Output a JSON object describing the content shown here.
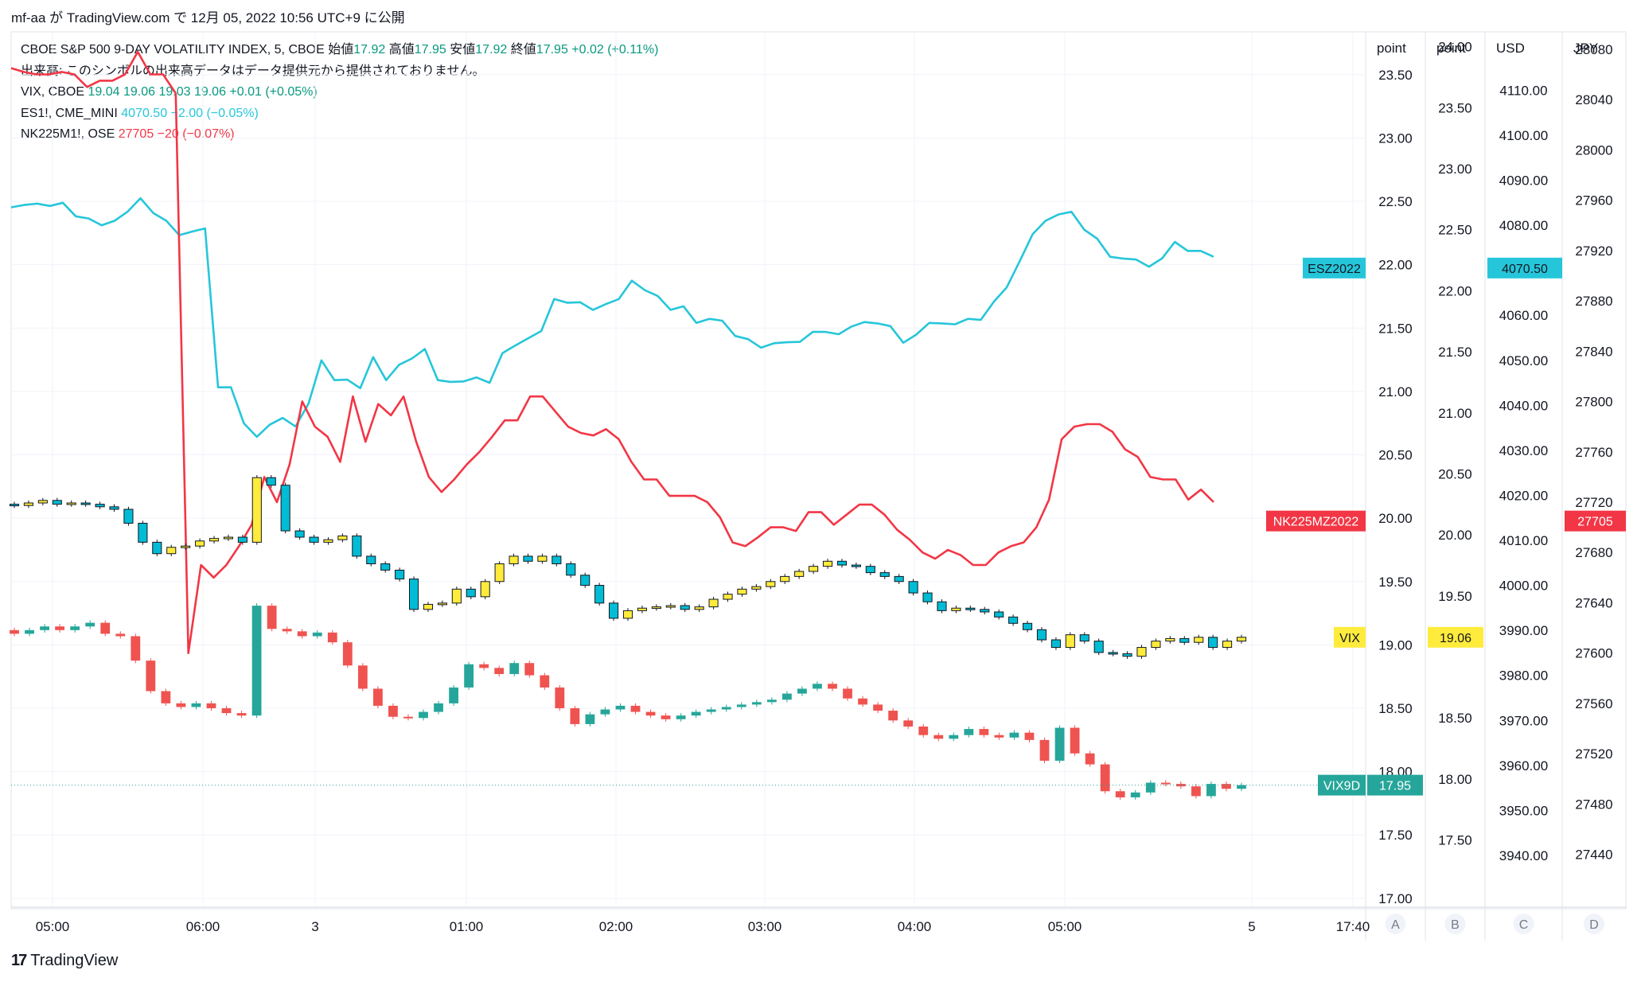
{
  "header": {
    "text": "mf-aa が TradingView.com で 12月 05, 2022 10:56 UTC+9 に公開"
  },
  "legend": {
    "main": {
      "name": "CBOE S&P 500 9-DAY VOLATILITY INDEX, 5, CBOE",
      "o_label": "始値",
      "o": "17.92",
      "h_label": "高値",
      "h": "17.95",
      "l_label": "安値",
      "l": "17.92",
      "c_label": "終値",
      "c": "17.95",
      "chg": "+0.02 (+0.11%)"
    },
    "volume_note": "出来高: このシンボルの出来高データはデータ提供元から提供されておりません。",
    "vix": {
      "name": "VIX, CBOE",
      "values": "19.04  19.06  19.03  19.06  +0.01 (+0.05%)"
    },
    "es": {
      "name": "ES1!, CME_MINI",
      "values": "4070.50  −2.00 (−0.05%)"
    },
    "nk": {
      "name": "NK225M1!, OSE",
      "values": "27705  −20 (−0.07%)"
    }
  },
  "axes": {
    "a_title": "point",
    "b_title": "point",
    "c_title": "USD",
    "d_title": "JPY",
    "a_ticks": [
      "23.50",
      "23.00",
      "22.50",
      "22.00",
      "21.50",
      "21.00",
      "20.50",
      "20.00",
      "19.50",
      "19.00",
      "18.50",
      "18.00",
      "17.50",
      "17.00"
    ],
    "b_ticks": [
      "24.00",
      "23.50",
      "23.00",
      "22.50",
      "22.00",
      "21.50",
      "21.00",
      "20.50",
      "20.00",
      "19.50",
      "18.50",
      "18.00",
      "17.50"
    ],
    "c_ticks": [
      "4110.00",
      "4100.00",
      "4090.00",
      "4080.00",
      "4060.00",
      "4050.00",
      "4040.00",
      "4030.00",
      "4020.00",
      "4010.00",
      "4000.00",
      "3990.00",
      "3980.00",
      "3970.00",
      "3960.00",
      "3950.00",
      "3940.00"
    ],
    "d_ticks": [
      "28080",
      "28040",
      "28000",
      "27960",
      "27920",
      "27880",
      "27840",
      "27800",
      "27760",
      "27720",
      "27680",
      "27640",
      "27600",
      "27560",
      "27520",
      "27480",
      "27440"
    ],
    "time_ticks": [
      "05:00",
      "06:00",
      "3",
      "01:00",
      "02:00",
      "03:00",
      "04:00",
      "05:00",
      "5",
      "17:40"
    ],
    "scale_buttons": [
      "A",
      "B",
      "C",
      "D"
    ]
  },
  "badges": {
    "es_label": "ESZ2022",
    "es_value": "4070.50",
    "nk_label": "NK225MZ2022",
    "nk_value": "27705",
    "vix_label": "VIX",
    "vix_value": "19.06",
    "vix9d_label": "VIX9D",
    "vix9d_value": "17.95"
  },
  "colors": {
    "es": "#26c6da",
    "nk": "#f23645",
    "vix_up": "#ffeb3b",
    "vix_down": "#00bcd4",
    "v9_up": "#26a69a",
    "v9_down": "#ef5350",
    "badge_teal": "#26a69a"
  },
  "chart_data": {
    "type": "line",
    "series": [
      {
        "name": "ESZ2022",
        "y": [
          4084,
          4084.5,
          4084.8,
          4084.3,
          4085,
          4082,
          4081.5,
          4080,
          4081,
          4083,
          4086,
          4082.7,
          4081,
          4077.8,
          4078.6,
          4079.3,
          4044,
          4044,
          4036,
          4033,
          4035.7,
          4037.2,
          4035.3,
          4040.4,
          4050,
          4045.6,
          4045.7,
          4043.8,
          4050.7,
          4045.6,
          4049,
          4050.4,
          4052.5,
          4045.6,
          4045.2,
          4045.3,
          4046.2,
          4045,
          4051.6,
          4053.3,
          4054.9,
          4056.5,
          4063.6,
          4062.8,
          4062.9,
          4061.2,
          4062.5,
          4063.6,
          4067.7,
          4065.6,
          4064.3,
          4061.2,
          4062,
          4058.3,
          4059.2,
          4058.8,
          4055.4,
          4054.7,
          4052.8,
          4053.8,
          4054,
          4054.1,
          4056.3,
          4056.3,
          4055.8,
          4057.5,
          4058.5,
          4058.2,
          4057.6,
          4053.9,
          4055.7,
          4058.3,
          4058.2,
          4058,
          4059.2,
          4059,
          4063,
          4066.2,
          4072,
          4078,
          4081,
          4082.4,
          4083,
          4079,
          4077,
          4073,
          4072.6,
          4072.4,
          4070.8,
          4072.6,
          4076.3,
          4074.3,
          4074.3,
          4073
        ]
      },
      {
        "name": "NK225MZ2022",
        "y": [
          28065,
          28062,
          28060,
          28060,
          28062,
          28060,
          28050,
          28055,
          28055,
          28060,
          28078,
          28060,
          28060,
          28045,
          27600,
          27670,
          27660,
          27670,
          27685,
          27702,
          27740,
          27720,
          27750,
          27800,
          27780,
          27772,
          27752,
          27804,
          27768,
          27798,
          27789,
          27804,
          27768,
          27740,
          27728,
          27738,
          27750,
          27760,
          27772,
          27785,
          27785,
          27804,
          27804,
          27792,
          27780,
          27775,
          27773,
          27778,
          27770,
          27752,
          27738,
          27738,
          27725,
          27725,
          27725,
          27720,
          27708,
          27688,
          27685,
          27692,
          27700,
          27700,
          27697,
          27712,
          27712,
          27702,
          27710,
          27718,
          27718,
          27710,
          27698,
          27690,
          27680,
          27675,
          27682,
          27678,
          27670,
          27670,
          27680,
          27685,
          27688,
          27700,
          27722,
          27770,
          27780,
          27782,
          27782,
          27776,
          27762,
          27756,
          27740,
          27738,
          27738,
          27722,
          27730,
          27720
        ]
      },
      {
        "name": "VIX",
        "ohlc": [
          [
            20.11,
            20.1
          ],
          [
            20.1,
            20.12
          ],
          [
            20.12,
            20.14
          ],
          [
            20.14,
            20.11
          ],
          [
            20.11,
            20.12
          ],
          [
            20.12,
            20.11
          ],
          [
            20.11,
            20.09
          ],
          [
            20.09,
            20.07
          ],
          [
            20.07,
            19.96
          ],
          [
            19.96,
            19.81
          ],
          [
            19.81,
            19.72
          ],
          [
            19.72,
            19.77
          ],
          [
            19.77,
            19.78
          ],
          [
            19.78,
            19.82
          ],
          [
            19.82,
            19.84
          ],
          [
            19.84,
            19.85
          ],
          [
            19.85,
            19.81
          ],
          [
            19.81,
            20.32
          ],
          [
            20.32,
            20.26
          ],
          [
            20.26,
            19.9
          ],
          [
            19.9,
            19.85
          ],
          [
            19.85,
            19.81
          ],
          [
            19.81,
            19.83
          ],
          [
            19.83,
            19.86
          ],
          [
            19.86,
            19.7
          ],
          [
            19.7,
            19.64
          ],
          [
            19.64,
            19.59
          ],
          [
            19.59,
            19.52
          ],
          [
            19.52,
            19.28
          ],
          [
            19.28,
            19.32
          ],
          [
            19.32,
            19.33
          ],
          [
            19.33,
            19.44
          ],
          [
            19.44,
            19.38
          ],
          [
            19.38,
            19.5
          ],
          [
            19.5,
            19.64
          ],
          [
            19.64,
            19.7
          ],
          [
            19.7,
            19.66
          ],
          [
            19.66,
            19.7
          ],
          [
            19.7,
            19.64
          ],
          [
            19.64,
            19.55
          ],
          [
            19.55,
            19.47
          ],
          [
            19.47,
            19.33
          ],
          [
            19.33,
            19.21
          ],
          [
            19.21,
            19.27
          ],
          [
            19.27,
            19.29
          ],
          [
            19.29,
            19.3
          ],
          [
            19.3,
            19.31
          ],
          [
            19.31,
            19.28
          ],
          [
            19.28,
            19.3
          ],
          [
            19.3,
            19.36
          ],
          [
            19.36,
            19.4
          ],
          [
            19.4,
            19.44
          ],
          [
            19.44,
            19.46
          ],
          [
            19.46,
            19.5
          ],
          [
            19.5,
            19.54
          ],
          [
            19.54,
            19.58
          ],
          [
            19.58,
            19.62
          ],
          [
            19.62,
            19.66
          ],
          [
            19.66,
            19.63
          ],
          [
            19.63,
            19.62
          ],
          [
            19.62,
            19.57
          ],
          [
            19.57,
            19.54
          ],
          [
            19.54,
            19.5
          ],
          [
            19.5,
            19.41
          ],
          [
            19.41,
            19.34
          ],
          [
            19.34,
            19.27
          ],
          [
            19.27,
            19.29
          ],
          [
            19.29,
            19.28
          ],
          [
            19.28,
            19.26
          ],
          [
            19.26,
            19.22
          ],
          [
            19.22,
            19.17
          ],
          [
            19.17,
            19.12
          ],
          [
            19.12,
            19.04
          ],
          [
            19.04,
            18.98
          ],
          [
            18.98,
            19.08
          ],
          [
            19.08,
            19.03
          ],
          [
            19.03,
            18.94
          ],
          [
            18.94,
            18.93
          ],
          [
            18.93,
            18.91
          ],
          [
            18.91,
            18.98
          ],
          [
            18.98,
            19.03
          ],
          [
            19.03,
            19.05
          ],
          [
            19.05,
            19.02
          ],
          [
            19.02,
            19.06
          ],
          [
            19.06,
            18.98
          ],
          [
            18.98,
            19.03
          ],
          [
            19.03,
            19.06
          ]
        ]
      },
      {
        "name": "VIX9D",
        "ohlc": [
          [
            19.22,
            19.19
          ],
          [
            19.19,
            19.22
          ],
          [
            19.22,
            19.25
          ],
          [
            19.25,
            19.22
          ],
          [
            19.22,
            19.25
          ],
          [
            19.25,
            19.28
          ],
          [
            19.28,
            19.19
          ],
          [
            19.19,
            19.17
          ],
          [
            19.17,
            18.97
          ],
          [
            18.97,
            18.72
          ],
          [
            18.72,
            18.62
          ],
          [
            18.62,
            18.59
          ],
          [
            18.59,
            18.62
          ],
          [
            18.62,
            18.58
          ],
          [
            18.58,
            18.54
          ],
          [
            18.54,
            18.52
          ],
          [
            18.52,
            19.42
          ],
          [
            19.42,
            19.23
          ],
          [
            19.23,
            19.21
          ],
          [
            19.21,
            19.17
          ],
          [
            19.17,
            19.2
          ],
          [
            19.2,
            19.12
          ],
          [
            19.12,
            18.93
          ],
          [
            18.93,
            18.74
          ],
          [
            18.74,
            18.6
          ],
          [
            18.6,
            18.51
          ],
          [
            18.51,
            18.5
          ],
          [
            18.5,
            18.55
          ],
          [
            18.55,
            18.62
          ],
          [
            18.62,
            18.75
          ],
          [
            18.75,
            18.94
          ],
          [
            18.94,
            18.91
          ],
          [
            18.91,
            18.86
          ],
          [
            18.86,
            18.95
          ],
          [
            18.95,
            18.85
          ],
          [
            18.85,
            18.75
          ],
          [
            18.75,
            18.58
          ],
          [
            18.58,
            18.45
          ],
          [
            18.45,
            18.53
          ],
          [
            18.53,
            18.57
          ],
          [
            18.57,
            18.6
          ],
          [
            18.6,
            18.55
          ],
          [
            18.55,
            18.52
          ],
          [
            18.52,
            18.49
          ],
          [
            18.49,
            18.52
          ],
          [
            18.52,
            18.55
          ],
          [
            18.55,
            18.57
          ],
          [
            18.57,
            18.59
          ],
          [
            18.59,
            18.61
          ],
          [
            18.61,
            18.63
          ],
          [
            18.63,
            18.65
          ],
          [
            18.65,
            18.7
          ],
          [
            18.7,
            18.74
          ],
          [
            18.74,
            18.78
          ],
          [
            18.78,
            18.74
          ],
          [
            18.74,
            18.66
          ],
          [
            18.66,
            18.61
          ],
          [
            18.61,
            18.56
          ],
          [
            18.56,
            18.48
          ],
          [
            18.48,
            18.43
          ],
          [
            18.43,
            18.36
          ],
          [
            18.36,
            18.33
          ],
          [
            18.33,
            18.36
          ],
          [
            18.36,
            18.41
          ],
          [
            18.41,
            18.36
          ],
          [
            18.36,
            18.34
          ],
          [
            18.34,
            18.38
          ],
          [
            18.38,
            18.32
          ],
          [
            18.32,
            18.15
          ],
          [
            18.15,
            18.42
          ],
          [
            18.42,
            18.21
          ],
          [
            18.21,
            18.12
          ],
          [
            18.12,
            17.9
          ],
          [
            17.9,
            17.85
          ],
          [
            17.85,
            17.89
          ],
          [
            17.89,
            17.97
          ],
          [
            17.97,
            17.96
          ],
          [
            17.96,
            17.94
          ],
          [
            17.94,
            17.86
          ],
          [
            17.86,
            17.96
          ],
          [
            17.96,
            17.92
          ],
          [
            17.92,
            17.95
          ]
        ]
      }
    ],
    "scales": {
      "A": {
        "unit": "point",
        "range": [
          16.93,
          23.75
        ]
      },
      "B": {
        "unit": "point",
        "range": [
          16.95,
          24.03
        ]
      },
      "C": {
        "unit": "USD",
        "range": [
          3928.5,
          4120.5
        ]
      },
      "D": {
        "unit": "JPY",
        "range": [
          27398,
          28085
        ]
      }
    },
    "xlabel": "",
    "ylabel": "",
    "grid": true
  }
}
